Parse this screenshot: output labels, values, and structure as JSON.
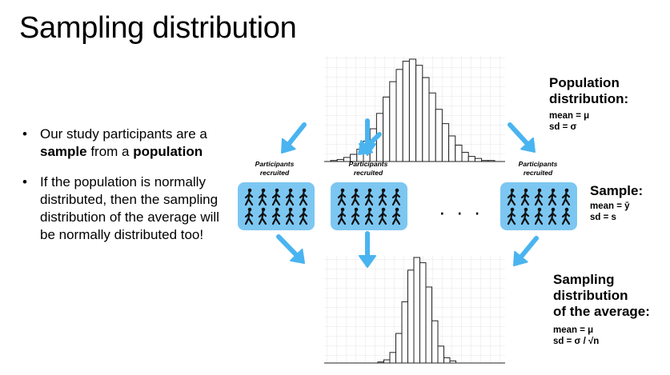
{
  "title": "Sampling distribution",
  "bullets": [
    {
      "pre": "Our study participants are a ",
      "b1": "sample",
      "mid": " from a ",
      "b2": "population"
    },
    {
      "text": "If the population is normally distributed, then the sampling distribution of the average will be normally distributed too!"
    }
  ],
  "population": {
    "label_line1": "Population",
    "label_line2": "distribution:",
    "mean": "mean = μ",
    "sd": "sd = σ"
  },
  "sample": {
    "label": "Sample:",
    "mean": "mean = ȳ",
    "sd": "sd = s"
  },
  "sampling": {
    "label_line1": "Sampling",
    "label_line2": "distribution",
    "label_line3": "of the average:",
    "mean": "mean = μ",
    "sd": "sd = σ / √n"
  },
  "recruited": {
    "line1": "Participants",
    "line2": "recruited"
  },
  "ellipsis": "· · ·",
  "colors": {
    "accent": "#4ab4f0",
    "box": "#7cc7f2"
  },
  "chart_data": [
    {
      "type": "bar",
      "title": "",
      "description_series": "population histogram (relative heights)",
      "values": [
        1,
        2,
        4,
        7,
        12,
        20,
        32,
        47,
        63,
        78,
        90,
        98,
        100,
        94,
        82,
        67,
        51,
        37,
        25,
        16,
        9,
        5,
        3,
        1,
        1
      ]
    },
    {
      "type": "bar",
      "title": "",
      "description_series": "sampling distribution of the average (relative heights)",
      "values": [
        1,
        3,
        10,
        28,
        58,
        88,
        100,
        95,
        72,
        40,
        16,
        5,
        2
      ]
    }
  ]
}
